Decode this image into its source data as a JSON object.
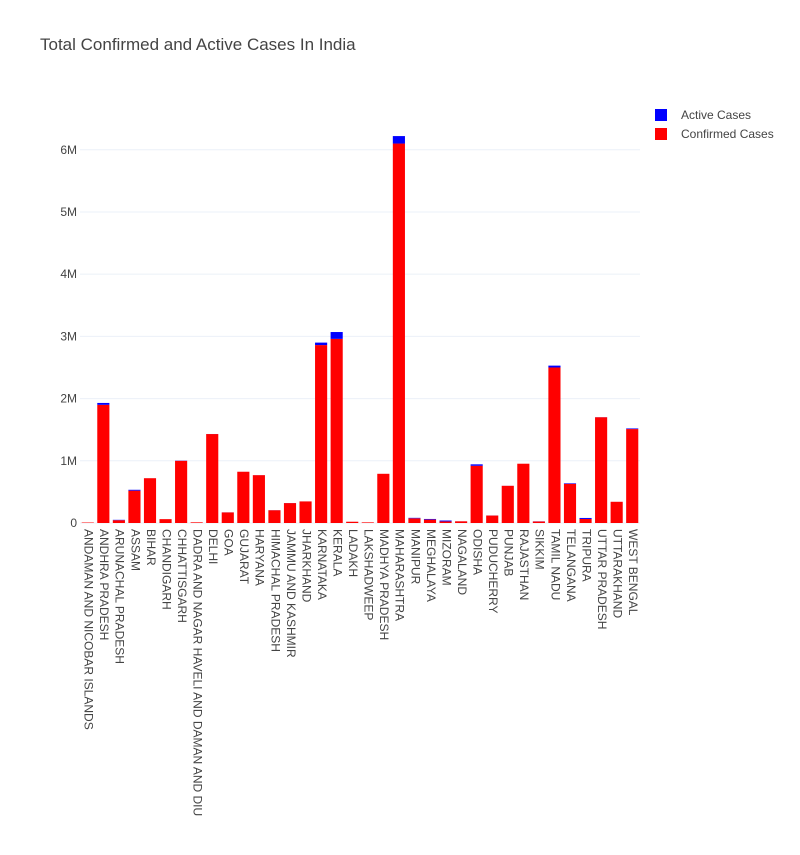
{
  "chart_data": {
    "type": "bar",
    "barmode": "stack",
    "title": "Total Confirmed and Active Cases In India",
    "xlabel": "",
    "ylabel": "",
    "ylim": [
      0,
      6800000
    ],
    "y_ticks": [
      {
        "value": 0,
        "label": "0"
      },
      {
        "value": 1000000,
        "label": "1M"
      },
      {
        "value": 2000000,
        "label": "2M"
      },
      {
        "value": 3000000,
        "label": "3M"
      },
      {
        "value": 4000000,
        "label": "4M"
      },
      {
        "value": 5000000,
        "label": "5M"
      },
      {
        "value": 6000000,
        "label": "6M"
      }
    ],
    "grid": true,
    "legend_position": "top-right",
    "categories": [
      "ANDAMAN AND NICOBAR ISLANDS",
      "ANDHRA PRADESH",
      "ARUNACHAL PRADESH",
      "ASSAM",
      "BIHAR",
      "CHANDIGARH",
      "CHHATTISGARH",
      "DADRA AND NAGAR HAVELI AND DAMAN AND DIU",
      "DELHI",
      "GOA",
      "GUJARAT",
      "HARYANA",
      "HIMACHAL PRADESH",
      "JAMMU AND KASHMIR",
      "JHARKHAND",
      "KARNATAKA",
      "KERALA",
      "LADAKH",
      "LAKSHADWEEP",
      "MADHYA PRADESH",
      "MAHARASHTRA",
      "MANIPUR",
      "MEGHALAYA",
      "MIZORAM",
      "NAGALAND",
      "ODISHA",
      "PUDUCHERRY",
      "PUNJAB",
      "RAJASTHAN",
      "SIKKIM",
      "TAMIL NADU",
      "TELANGANA",
      "TRIPURA",
      "UTTAR PRADESH",
      "UTTARAKHAND",
      "WEST BENGAL"
    ],
    "series": [
      {
        "name": "Confirmed Cases",
        "color": "#ff0000",
        "values": [
          7500,
          1900000,
          45000,
          520000,
          720000,
          62000,
          1000000,
          10600,
          1430000,
          170000,
          824000,
          769000,
          205000,
          320000,
          347000,
          2860000,
          2960000,
          20200,
          10000,
          791000,
          6100000,
          75000,
          55000,
          25000,
          27000,
          920000,
          120000,
          598000,
          953000,
          24000,
          2500000,
          630000,
          65000,
          1700000,
          341000,
          1510000
        ]
      },
      {
        "name": "Active Cases",
        "color": "#0000ff",
        "values": [
          100,
          30000,
          6000,
          14000,
          200,
          100,
          3000,
          10,
          900,
          1000,
          200,
          600,
          1200,
          1100,
          150,
          40000,
          110000,
          150,
          100,
          100,
          120000,
          8000,
          10000,
          15000,
          500,
          23000,
          900,
          600,
          100,
          2000,
          30000,
          9000,
          16000,
          1200,
          300,
          10000
        ]
      }
    ]
  }
}
